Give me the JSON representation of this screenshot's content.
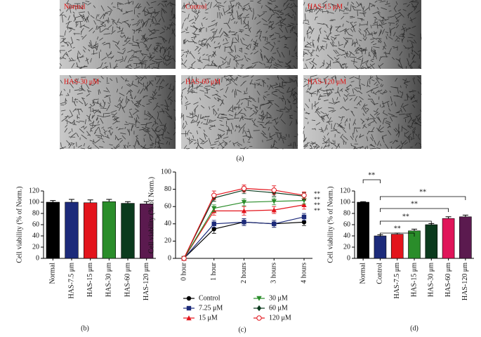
{
  "panel_a": {
    "images": [
      "Normal",
      "Control",
      "HAS-15 μM",
      "HAS-30 μM",
      "HAS-60 μM",
      "HAS-120 μM"
    ],
    "caption": "(a)"
  },
  "chart_data": [
    {
      "type": "bar",
      "ylabel": "Cell viability (% of Norm.)",
      "categories": [
        "Normal",
        "HAS-7.5 μm",
        "HAS-15 μm",
        "HAS-30 μm",
        "HAS-60 μm",
        "HAS-120 μm"
      ],
      "values": [
        100,
        100,
        99,
        101,
        98,
        97
      ],
      "errors": [
        3,
        5,
        5,
        4,
        3,
        4
      ],
      "colors": [
        "#000000",
        "#1c2a7a",
        "#e3141c",
        "#2a8d2a",
        "#0b3a1d",
        "#5b1a4f"
      ],
      "ylim": [
        0,
        120
      ],
      "yticks": [
        0,
        20,
        40,
        60,
        80,
        100,
        120
      ],
      "caption": "(b)"
    },
    {
      "type": "line",
      "ylabel": "Cell viability (% of Norm.)",
      "categories": [
        "0 hour",
        "1 hour",
        "2 hours",
        "3 hours",
        "4 hours"
      ],
      "series": [
        {
          "name": "Control",
          "color": "#000000",
          "marker": "circle",
          "values": [
            0,
            34,
            42,
            40,
            42
          ],
          "errors": [
            0,
            5,
            4,
            4,
            4
          ]
        },
        {
          "name": "7.25 μM",
          "color": "#1c2a7a",
          "marker": "square",
          "values": [
            0,
            40,
            42,
            40,
            48
          ],
          "errors": [
            0,
            4,
            4,
            4,
            4
          ]
        },
        {
          "name": "15 μM",
          "color": "#e3141c",
          "marker": "triangle-up",
          "values": [
            0,
            55,
            55,
            56,
            62
          ],
          "errors": [
            0,
            5,
            5,
            4,
            5
          ]
        },
        {
          "name": "30 μM",
          "color": "#2a8d2a",
          "marker": "triangle-down",
          "values": [
            0,
            58,
            65,
            66,
            67
          ],
          "errors": [
            0,
            4,
            4,
            4,
            4
          ]
        },
        {
          "name": "60 μM",
          "color": "#0b3a1d",
          "marker": "diamond",
          "values": [
            0,
            70,
            79,
            76,
            72
          ],
          "errors": [
            0,
            4,
            4,
            4,
            4
          ]
        },
        {
          "name": "120 μM",
          "color": "#e3141c",
          "marker": "circle-open",
          "values": [
            0,
            73,
            81,
            79,
            73
          ],
          "errors": [
            0,
            5,
            4,
            5,
            4
          ]
        }
      ],
      "ylim": [
        0,
        100
      ],
      "yticks": [
        0,
        20,
        40,
        60,
        80,
        100
      ],
      "annotations": [
        "**",
        "**",
        "**",
        "**"
      ],
      "caption": "(c)"
    },
    {
      "type": "bar",
      "ylabel": "Cell viability (% of Norm.)",
      "categories": [
        "Normal",
        "Control",
        "HAS-7.5 μm",
        "HAS-15 μm",
        "HAS-30 μm",
        "HAS-60 μm",
        "HAS-120 μm"
      ],
      "values": [
        100,
        40,
        43,
        49,
        60,
        71,
        74
      ],
      "errors": [
        1,
        2,
        2,
        3,
        2,
        3,
        3
      ],
      "colors": [
        "#000000",
        "#1c2a7a",
        "#e3141c",
        "#2a8d2a",
        "#0b3a1d",
        "#e0155a",
        "#5b1a4f"
      ],
      "ylim": [
        0,
        120
      ],
      "yticks": [
        0,
        20,
        40,
        60,
        80,
        100,
        120
      ],
      "significance": [
        {
          "between": [
            "Normal",
            "Control"
          ],
          "label": "**"
        },
        {
          "between": [
            "Control",
            "HAS-120 μm"
          ],
          "label": "**"
        },
        {
          "between": [
            "Control",
            "HAS-60 μm"
          ],
          "label": "**"
        },
        {
          "between": [
            "Control",
            "HAS-30 μm"
          ],
          "label": "**"
        },
        {
          "between": [
            "Control",
            "HAS-15 μm"
          ],
          "label": "**"
        }
      ],
      "caption": "(d)"
    }
  ]
}
